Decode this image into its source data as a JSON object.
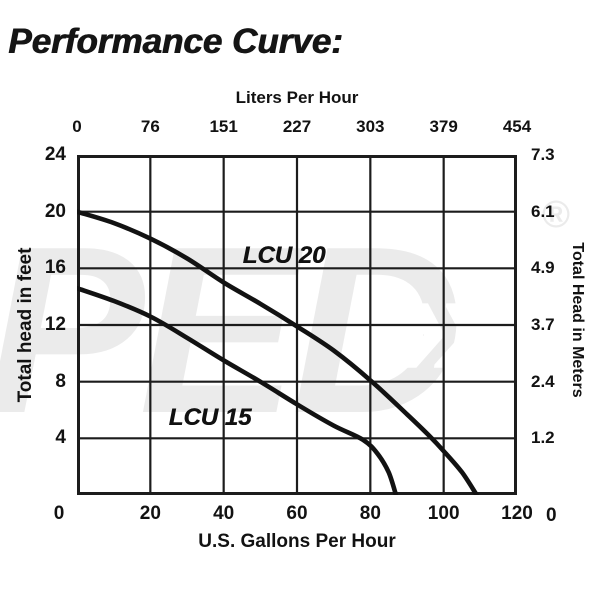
{
  "title": "Performance Curve:",
  "watermark": {
    "text": "PED",
    "arrow": "»",
    "reg": "®"
  },
  "chart_data": {
    "type": "line",
    "title": "Performance Curve:",
    "grid": true,
    "legend_position": "inline-labels",
    "x_axis_bottom": {
      "label": "U.S. Gallons Per Hour",
      "ticks": [
        "0",
        "20",
        "40",
        "60",
        "80",
        "100",
        "120"
      ],
      "range": [
        0,
        120
      ]
    },
    "x_axis_top": {
      "label": "Liters Per Hour",
      "ticks": [
        "0",
        "76",
        "151",
        "227",
        "303",
        "379",
        "454"
      ],
      "range": [
        0,
        454
      ]
    },
    "y_axis_left": {
      "label": "Total head in feet",
      "ticks": [
        "24",
        "20",
        "16",
        "12",
        "8",
        "4",
        "0"
      ],
      "range": [
        0,
        24
      ]
    },
    "y_axis_right": {
      "label": "Total Head in Meters",
      "ticks": [
        "7.3",
        "6.1",
        "4.9",
        "3.7",
        "2.4",
        "1.2",
        "0"
      ],
      "range": [
        0,
        7.3
      ]
    },
    "series": [
      {
        "name": "LCU 20",
        "units": [
          "gph",
          "feet"
        ],
        "points": [
          [
            0,
            20
          ],
          [
            10,
            19.2
          ],
          [
            20,
            18.1
          ],
          [
            30,
            16.7
          ],
          [
            40,
            15.0
          ],
          [
            50,
            13.5
          ],
          [
            60,
            11.9
          ],
          [
            70,
            10.2
          ],
          [
            80,
            8.1
          ],
          [
            90,
            5.7
          ],
          [
            96,
            4.2
          ],
          [
            100,
            3.1
          ],
          [
            105,
            1.6
          ],
          [
            109,
            0
          ]
        ]
      },
      {
        "name": "LCU 15",
        "units": [
          "gph",
          "feet"
        ],
        "points": [
          [
            0,
            14.6
          ],
          [
            10,
            13.7
          ],
          [
            20,
            12.6
          ],
          [
            30,
            11.1
          ],
          [
            40,
            9.5
          ],
          [
            50,
            8.0
          ],
          [
            60,
            6.4
          ],
          [
            70,
            4.9
          ],
          [
            78,
            3.9
          ],
          [
            82,
            2.9
          ],
          [
            85,
            1.6
          ],
          [
            87,
            0
          ]
        ]
      }
    ]
  }
}
